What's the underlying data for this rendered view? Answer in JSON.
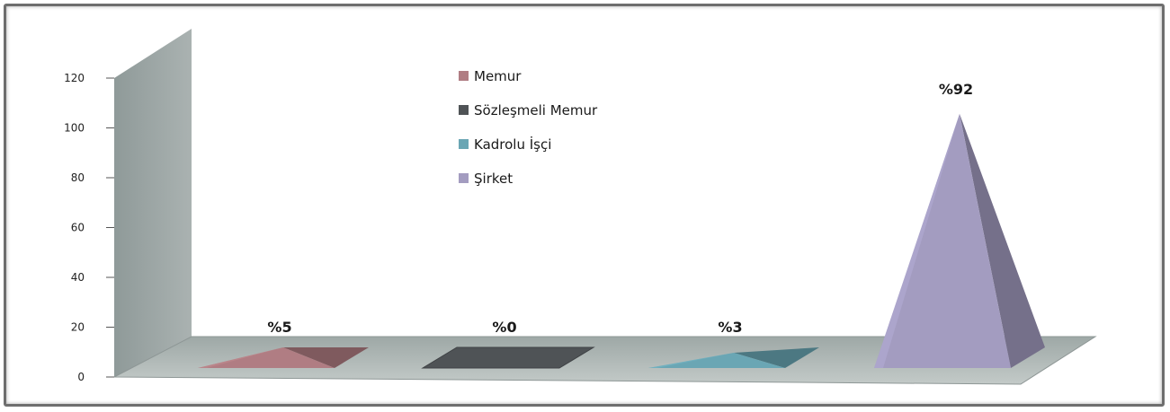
{
  "chart_data": {
    "type": "bar",
    "style": "3d-pyramid",
    "categories": [
      "Memur",
      "Sözleşmeli Memur",
      "Kadrolu İşçi",
      "Şirket"
    ],
    "values": [
      5,
      0,
      3,
      92
    ],
    "data_labels": [
      "%5",
      "%0",
      "%3",
      "%92"
    ],
    "colors": [
      "#b07d83",
      "#4f5356",
      "#6aa6b4",
      "#a39cc0"
    ],
    "ylim": [
      0,
      120
    ],
    "yticks": [
      0,
      20,
      40,
      60,
      80,
      100,
      120
    ],
    "grid": false,
    "legend": {
      "placement": "top-center",
      "entries": [
        "Memur",
        "Sözleşmeli Memur",
        "Kadrolu İşçi",
        "Şirket"
      ]
    }
  }
}
